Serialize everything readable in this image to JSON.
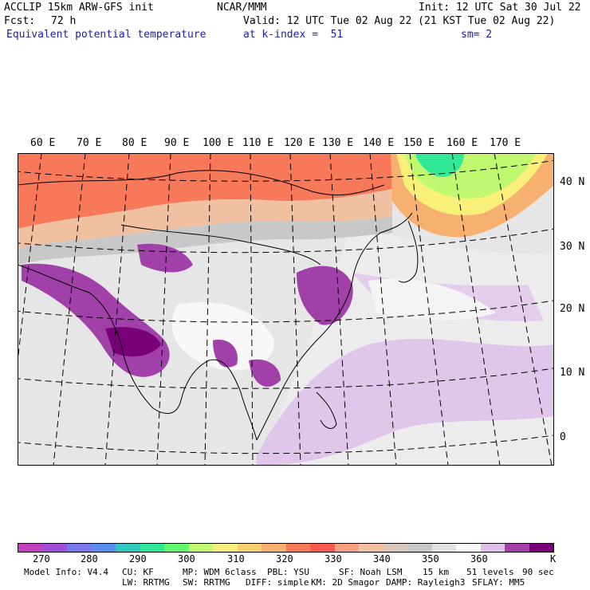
{
  "header": {
    "model": "ACCLIP 15km ARW-GFS init",
    "org": "NCAR/MMM",
    "init": "Init: 12 UTC Sat 30 Jul 22",
    "fcst_label": "Fcst:",
    "fcst_value": "72 h",
    "valid": "Valid: 12 UTC Tue 02 Aug 22 (21 KST Tue 02 Aug 22)",
    "field": "Equivalent potential temperature",
    "level": "at k-index =  51",
    "smooth": "sm= 2"
  },
  "longitude_labels": [
    "60 E",
    "70 E",
    "80 E",
    "90 E",
    "100 E",
    "110 E",
    "120 E",
    "130 E",
    "140 E",
    "150 E",
    "160 E",
    "170 E"
  ],
  "latitude_labels": [
    "40 N",
    "30 N",
    "20 N",
    "10 N",
    "0"
  ],
  "colorbar": {
    "colors": [
      "#c040c0",
      "#a050d8",
      "#7878e8",
      "#5a8ff0",
      "#30c8c0",
      "#30e898",
      "#60f870",
      "#c0f870",
      "#f8f078",
      "#f8d070",
      "#f8b070",
      "#f8785a",
      "#f85a50",
      "#f8a080",
      "#f0c0a0",
      "#d8c8bc",
      "#c8c8c8",
      "#e2e2e2",
      "#f8f8f8",
      "#e0c0e8",
      "#a040a8",
      "#780078"
    ],
    "tick_labels": [
      "270",
      "280",
      "290",
      "300",
      "310",
      "320",
      "330",
      "340",
      "350",
      "360"
    ],
    "unit": "K"
  },
  "footer": {
    "line1": [
      "Model Info: V4.4",
      "CU: KF",
      "MP: WDM 6class",
      "PBL: YSU",
      "SF: Noah LSM",
      "15 km",
      "51 levels",
      "90 sec"
    ],
    "line2": [
      "LW: RRTMG",
      "SW: RRTMG",
      "DIFF: simple",
      "KM: 2D Smagor",
      "DAMP: Rayleigh3",
      "SFLAY: MM5"
    ]
  }
}
